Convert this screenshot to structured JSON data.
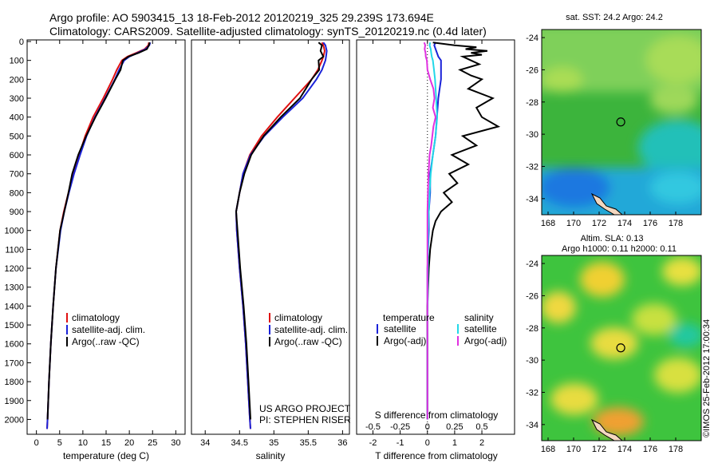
{
  "title_line1": "Argo profile: AO 5903415_13 18-Feb-2012 20120219_325 29.239S 173.694E",
  "title_line2": "Climatology: CARS2009. Satellite-adjusted climatology: synTS_20120219.nc (0.4d later)",
  "side_stamp": "©IMOS 25-Feb-2012 17:00:34",
  "colors": {
    "climatology": "#e01010",
    "satellite": "#1a22d8",
    "argo": "#000000",
    "sal_satellite": "#22d8e8",
    "sal_argo": "#e030e0"
  },
  "chart_data": [
    {
      "type": "line",
      "id": "temperature",
      "xlabel": "temperature (deg C)",
      "ylabel": "",
      "xlim": [
        -2,
        32
      ],
      "ylim": [
        2070,
        0
      ],
      "xticks": [
        0,
        5,
        10,
        15,
        20,
        25,
        30
      ],
      "yticks": [
        0,
        100,
        200,
        300,
        400,
        500,
        600,
        700,
        800,
        900,
        1000,
        1100,
        1200,
        1300,
        1400,
        1500,
        1600,
        1700,
        1800,
        1900,
        2000
      ],
      "legend": [
        "climatology",
        "satellite-adj. clim.",
        "Argo(..raw -QC)"
      ],
      "series": [
        {
          "name": "climatology",
          "depth": [
            5,
            20,
            40,
            60,
            80,
            100,
            150,
            200,
            300,
            400,
            500,
            600,
            700,
            800,
            900,
            1000,
            1200,
            1400,
            1600,
            1800,
            2000,
            2050
          ],
          "values": [
            24.2,
            24.1,
            23.3,
            21.5,
            19.6,
            18.4,
            17.3,
            16.4,
            14.4,
            12.2,
            10.5,
            9.2,
            8.0,
            6.9,
            5.9,
            5.1,
            4.2,
            3.6,
            3.1,
            2.7,
            2.4,
            2.3
          ]
        },
        {
          "name": "satellite-adj. clim.",
          "depth": [
            5,
            20,
            40,
            60,
            80,
            100,
            150,
            200,
            300,
            400,
            500,
            600,
            700,
            800,
            900,
            1000,
            1200,
            1400,
            1600,
            1800,
            2000,
            2050
          ],
          "values": [
            24.5,
            24.3,
            23.5,
            21.8,
            20.0,
            18.9,
            17.8,
            16.9,
            14.8,
            12.6,
            10.8,
            9.4,
            8.1,
            7.0,
            6.0,
            5.2,
            4.2,
            3.6,
            3.1,
            2.7,
            2.4,
            2.3
          ]
        },
        {
          "name": "Argo(..raw -QC)",
          "depth": [
            5,
            20,
            40,
            60,
            80,
            100,
            150,
            200,
            300,
            400,
            500,
            600,
            700,
            800,
            900,
            1000,
            1200,
            1400,
            1600,
            1800,
            2000
          ],
          "values": [
            24.4,
            24.2,
            23.8,
            22.0,
            19.8,
            18.6,
            18.1,
            17.0,
            14.9,
            12.7,
            10.7,
            9.0,
            7.7,
            6.9,
            6.0,
            5.1,
            4.2,
            3.6,
            3.1,
            2.7,
            2.4
          ]
        }
      ]
    },
    {
      "type": "line",
      "id": "salinity",
      "xlabel": "salinity",
      "ylabel": "",
      "xlim": [
        33.8,
        36.1
      ],
      "ylim": [
        2070,
        0
      ],
      "xticks": [
        34,
        34.5,
        35,
        35.5,
        36
      ],
      "legend": [
        "climatology",
        "satellite-adj. clim.",
        "Argo(..raw -QC)"
      ],
      "annotation": [
        "US ARGO PROJECT",
        "PI: STEPHEN RISER"
      ],
      "series": [
        {
          "name": "climatology",
          "depth": [
            5,
            20,
            50,
            80,
            100,
            150,
            200,
            300,
            400,
            500,
            600,
            700,
            800,
            900,
            1000,
            1200,
            1400,
            1600,
            1800,
            2000,
            2050
          ],
          "values": [
            35.7,
            35.72,
            35.74,
            35.72,
            35.7,
            35.64,
            35.55,
            35.3,
            35.05,
            34.82,
            34.65,
            34.55,
            34.5,
            34.45,
            34.46,
            34.5,
            34.55,
            34.59,
            34.62,
            34.65,
            34.66
          ]
        },
        {
          "name": "satellite-adj. clim.",
          "depth": [
            5,
            20,
            50,
            80,
            100,
            150,
            200,
            300,
            400,
            500,
            600,
            700,
            800,
            900,
            1000,
            1200,
            1400,
            1600,
            1800,
            2000,
            2050
          ],
          "values": [
            35.72,
            35.75,
            35.77,
            35.76,
            35.75,
            35.7,
            35.62,
            35.42,
            35.13,
            34.86,
            34.66,
            34.55,
            34.5,
            34.45,
            34.46,
            34.5,
            34.55,
            34.59,
            34.62,
            34.65,
            34.66
          ]
        },
        {
          "name": "Argo(..raw -QC)",
          "depth": [
            5,
            20,
            50,
            80,
            100,
            150,
            200,
            300,
            400,
            500,
            600,
            700,
            800,
            900,
            1000,
            1200,
            1400,
            1600,
            1800,
            2000
          ],
          "values": [
            35.65,
            35.7,
            35.68,
            35.72,
            35.65,
            35.66,
            35.55,
            35.38,
            35.1,
            34.85,
            34.67,
            34.57,
            34.5,
            34.45,
            34.47,
            34.51,
            34.56,
            34.6,
            34.63,
            34.66
          ]
        }
      ]
    },
    {
      "type": "line",
      "id": "difference",
      "xlabel": "T difference from climatology",
      "xlabel_top": "S difference from climatology",
      "xlim": [
        -2.6,
        3.2
      ],
      "ylim": [
        2070,
        0
      ],
      "xticks": [
        -2,
        -1,
        0,
        1,
        2
      ],
      "xticks_top_positions": [
        -2,
        -1,
        0,
        1,
        2
      ],
      "xticks_top_labels": [
        "-0.5",
        "-0.25",
        "0",
        "0.25",
        "0.5"
      ],
      "legend_headers": [
        "temperature",
        "salinity"
      ],
      "legend": [
        "satellite",
        "Argo(-adj)",
        "satellite",
        "Argo(-adj)"
      ],
      "series": [
        {
          "name": "T satellite",
          "depth": [
            5,
            20,
            40,
            60,
            80,
            100,
            150,
            200,
            300,
            400,
            500,
            600,
            700,
            800,
            900,
            1000,
            1200,
            1400,
            1600,
            1800,
            2000
          ],
          "values": [
            0.3,
            0.25,
            0.3,
            0.35,
            0.4,
            0.5,
            0.5,
            0.5,
            0.4,
            0.35,
            0.3,
            0.2,
            0.1,
            0.1,
            0.05,
            0.05,
            0.0,
            0.0,
            0.0,
            0.0,
            0.0
          ]
        },
        {
          "name": "T Argo(-adj)",
          "depth": [
            5,
            20,
            30,
            40,
            50,
            60,
            70,
            80,
            100,
            120,
            150,
            180,
            200,
            250,
            300,
            350,
            400,
            450,
            500,
            550,
            600,
            650,
            700,
            750,
            800,
            850,
            900,
            950,
            1000,
            1100,
            1200,
            1400,
            1600,
            1800,
            2000
          ],
          "values": [
            0.2,
            1.0,
            1.8,
            1.4,
            2.2,
            1.6,
            2.0,
            1.3,
            1.6,
            1.9,
            1.2,
            1.6,
            2.0,
            1.5,
            2.4,
            1.8,
            2.0,
            2.6,
            1.3,
            1.8,
            0.9,
            1.5,
            0.8,
            1.1,
            0.6,
            0.9,
            0.5,
            0.3,
            0.2,
            0.1,
            0.05,
            0.0,
            0.0,
            0.0,
            0.0
          ]
        },
        {
          "name": "S satellite",
          "depth": [
            5,
            20,
            40,
            60,
            80,
            100,
            150,
            200,
            300,
            400,
            500,
            600,
            700,
            800,
            900,
            1000,
            1200,
            1400,
            1600,
            1800,
            2000
          ],
          "values": [
            0.1,
            0.08,
            0.12,
            0.14,
            0.16,
            0.2,
            0.24,
            0.28,
            0.32,
            0.36,
            0.3,
            0.2,
            0.12,
            0.08,
            0.05,
            0.03,
            0.02,
            0.01,
            0.0,
            0.0,
            0.0
          ]
        },
        {
          "name": "S Argo(-adj)",
          "depth": [
            5,
            20,
            40,
            60,
            80,
            100,
            150,
            200,
            250,
            300,
            350,
            400,
            450,
            500,
            550,
            600,
            700,
            800,
            900,
            1000,
            1200,
            1400,
            1600,
            1800,
            2000
          ],
          "values": [
            -0.12,
            -0.08,
            -0.1,
            -0.07,
            -0.06,
            -0.02,
            0.0,
            0.1,
            0.22,
            0.26,
            0.2,
            0.3,
            0.22,
            0.18,
            0.14,
            0.08,
            0.04,
            0.02,
            0.0,
            0.0,
            0.0,
            0.0,
            0.0,
            0.0,
            0.0
          ]
        }
      ]
    },
    {
      "type": "heatmap",
      "id": "sst-map",
      "title": "sat. SST: 24.2  Argo: 24.2",
      "xlim": [
        167.5,
        180
      ],
      "ylim": [
        -35,
        -23.5
      ],
      "xticks": [
        168,
        170,
        172,
        174,
        176,
        178
      ],
      "yticks": [
        -24,
        -26,
        -28,
        -30,
        -32,
        -34
      ],
      "marker": {
        "lon": 173.694,
        "lat": -29.239
      }
    },
    {
      "type": "heatmap",
      "id": "sla-map",
      "title_line1": "Altim. SLA: 0.13",
      "title_line2": "Argo h1000: 0.11  h2000: 0.11",
      "xlim": [
        167.5,
        180
      ],
      "ylim": [
        -35,
        -23.5
      ],
      "xticks": [
        168,
        170,
        172,
        174,
        176,
        178
      ],
      "yticks": [
        -24,
        -26,
        -28,
        -30,
        -32,
        -34
      ],
      "marker": {
        "lon": 173.694,
        "lat": -29.239
      }
    }
  ]
}
